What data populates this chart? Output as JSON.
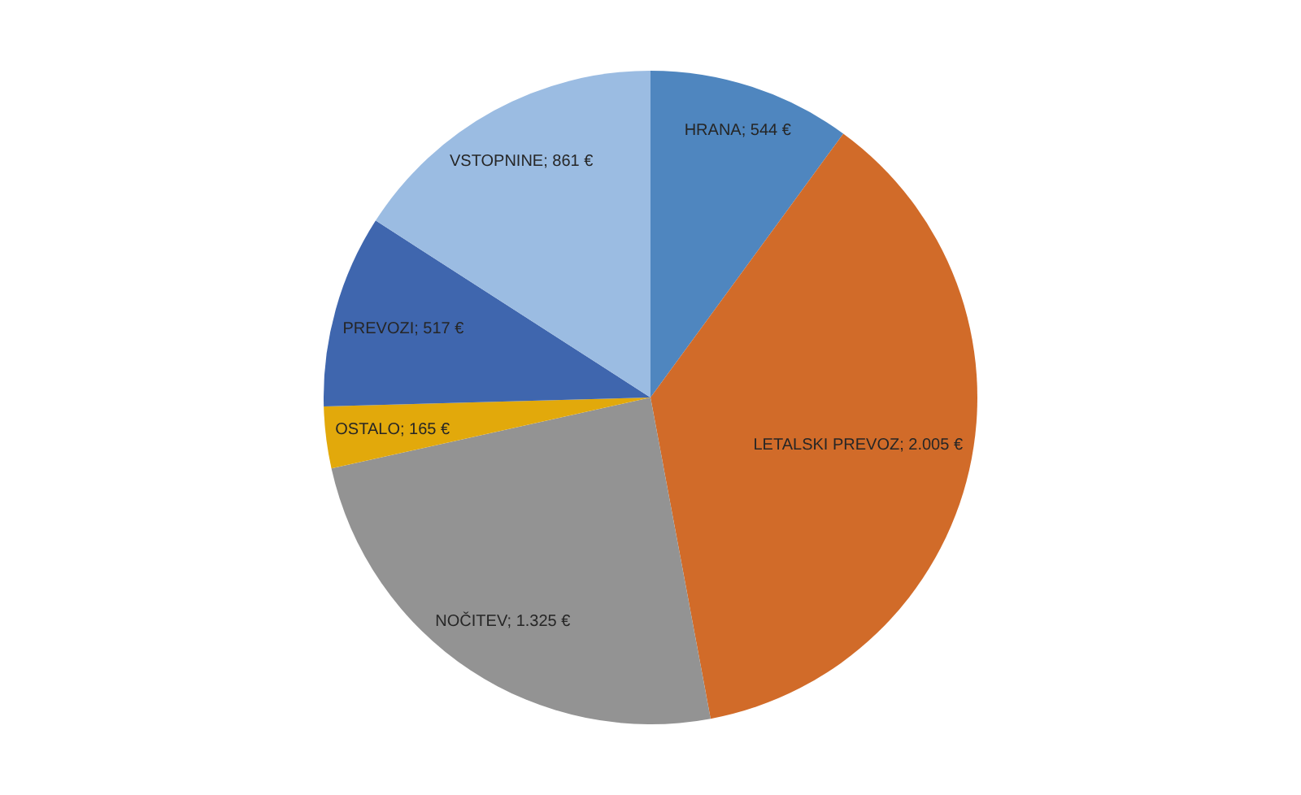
{
  "chart_data": {
    "type": "pie",
    "categories": [
      "HRANA",
      "LETALSKI PREVOZ",
      "NOČITEV",
      "OSTALO",
      "PREVOZI",
      "VSTOPNINE"
    ],
    "values": [
      544,
      2005,
      1325,
      165,
      517,
      861
    ],
    "colors": [
      "#4f86bf",
      "#d16b29",
      "#939393",
      "#e2a90b",
      "#3f66ae",
      "#9bbce2"
    ],
    "value_labels": [
      "544 €",
      "2.005 €",
      "1.325 €",
      "165 €",
      "517 €",
      "861 €"
    ]
  }
}
